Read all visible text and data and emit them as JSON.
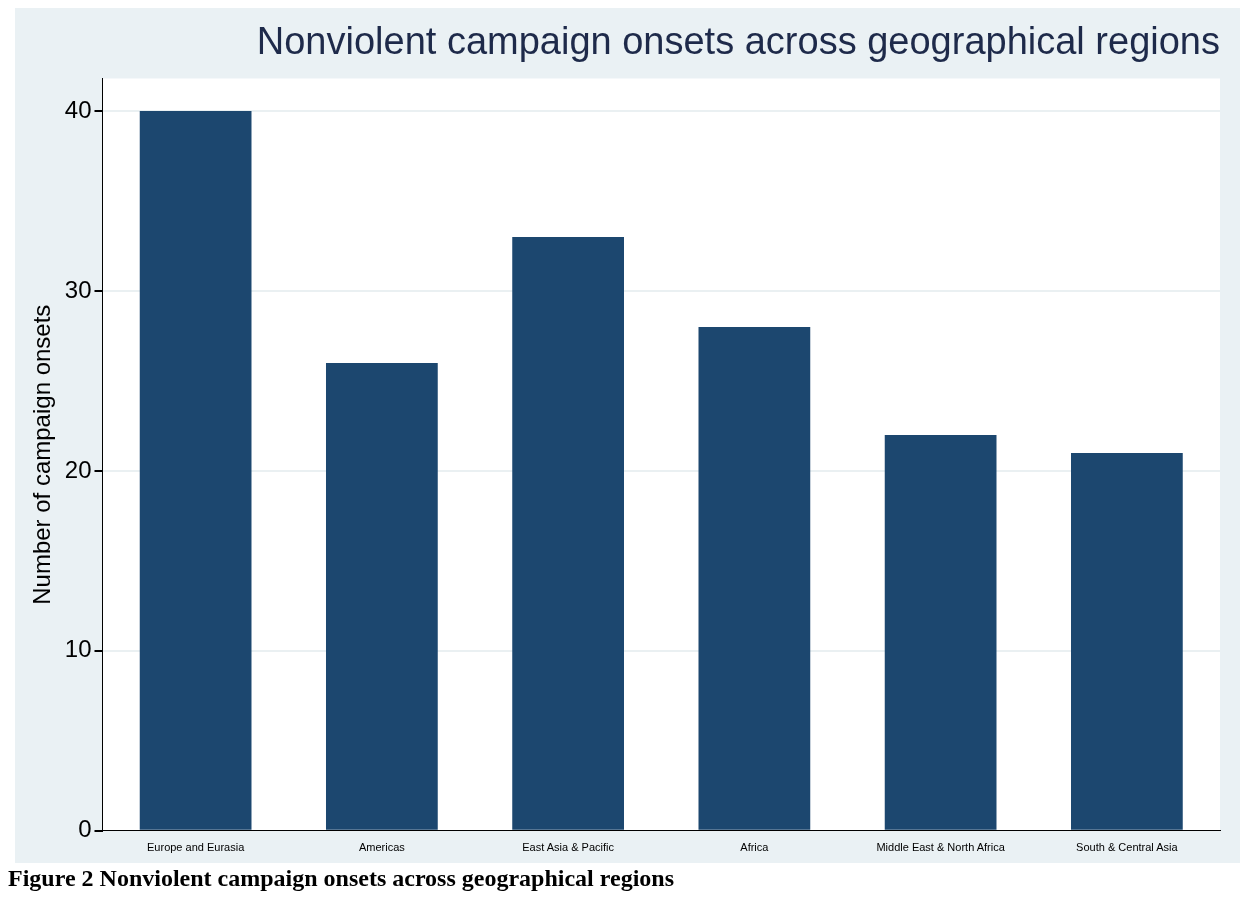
{
  "chart_data": {
    "type": "bar",
    "title": "Nonviolent campaign onsets across geographical regions",
    "ylabel": "Number of campaign onsets",
    "categories": [
      "Europe and Eurasia",
      "Americas",
      "East Asia & Pacific",
      "Africa",
      "Middle East & North Africa",
      "South & Central Asia"
    ],
    "values": [
      40,
      26,
      33,
      28,
      22,
      21
    ],
    "color": "#1c476f",
    "ylim": [
      0,
      41.8
    ],
    "yticks": [
      0,
      10,
      20,
      30,
      40
    ],
    "grid": "y",
    "legend": false,
    "annotations": [
      "Figure 2 Nonviolent campaign onsets across geographical regions"
    ]
  }
}
